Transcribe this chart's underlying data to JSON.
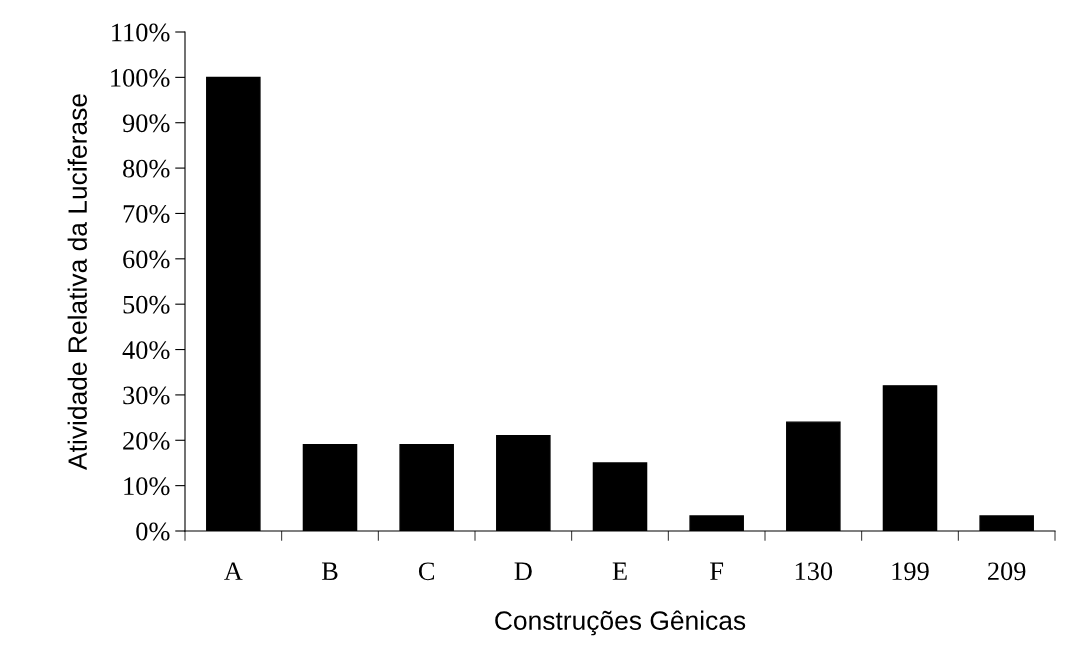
{
  "chart_data": {
    "type": "bar",
    "xlabel": "Construções Gênicas",
    "ylabel": "Atividade Relativa da Luciferase",
    "categories": [
      "A",
      "B",
      "C",
      "D",
      "E",
      "F",
      "130",
      "199",
      "209"
    ],
    "values": [
      100,
      19,
      19,
      21,
      15,
      3.3,
      24,
      32,
      3.3
    ],
    "color": "#000000",
    "ylim": [
      0,
      110
    ],
    "yticks": [
      {
        "value": 0,
        "label": "0%"
      },
      {
        "value": 10,
        "label": "10%"
      },
      {
        "value": 20,
        "label": "20%"
      },
      {
        "value": 30,
        "label": "30%"
      },
      {
        "value": 40,
        "label": "40%"
      },
      {
        "value": 50,
        "label": "50%"
      },
      {
        "value": 60,
        "label": "60%"
      },
      {
        "value": 70,
        "label": "70%"
      },
      {
        "value": 80,
        "label": "80%"
      },
      {
        "value": 90,
        "label": "90%"
      },
      {
        "value": 100,
        "label": "100%"
      },
      {
        "value": 110,
        "label": "110%"
      }
    ],
    "grid": false,
    "legend": false
  }
}
